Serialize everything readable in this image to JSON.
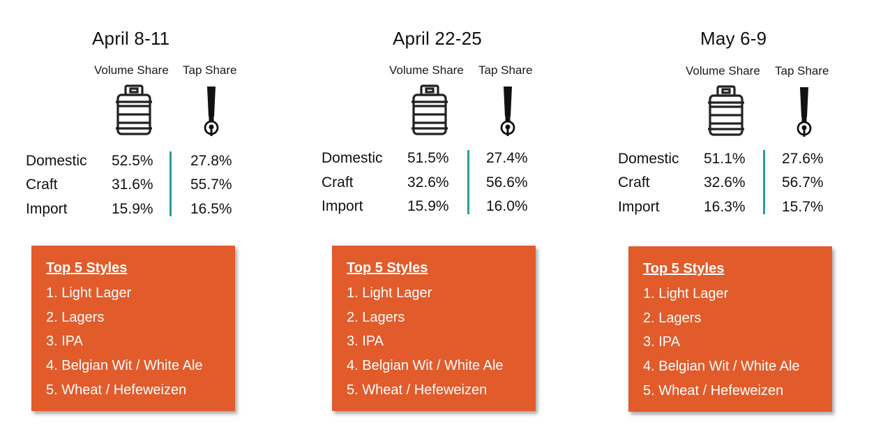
{
  "column_headers": {
    "volume": "Volume Share",
    "tap": "Tap Share"
  },
  "icons": {
    "volume": "keg-icon",
    "tap": "beer-tap-handle-icon"
  },
  "accent_colors": {
    "divider": "#2a9d9b",
    "styles_box": "#e15b2b"
  },
  "panels": [
    {
      "title": "April 8-11",
      "rows": [
        {
          "label": "Domestic",
          "volume": "52.5%",
          "tap": "27.8%"
        },
        {
          "label": "Craft",
          "volume": "31.6%",
          "tap": "55.7%"
        },
        {
          "label": "Import",
          "volume": "15.9%",
          "tap": "16.5%"
        }
      ],
      "styles_title": "Top 5 Styles",
      "styles": [
        "1. Light Lager",
        "2. Lagers",
        "3. IPA",
        "4. Belgian Wit / White Ale",
        "5. Wheat / Hefeweizen"
      ]
    },
    {
      "title": "April 22-25",
      "rows": [
        {
          "label": "Domestic",
          "volume": "51.5%",
          "tap": "27.4%"
        },
        {
          "label": "Craft",
          "volume": "32.6%",
          "tap": "56.6%"
        },
        {
          "label": "Import",
          "volume": "15.9%",
          "tap": "16.0%"
        }
      ],
      "styles_title": "Top 5 Styles",
      "styles": [
        "1. Light Lager",
        "2. Lagers",
        "3. IPA",
        "4. Belgian Wit / White Ale",
        "5. Wheat / Hefeweizen"
      ]
    },
    {
      "title": "May 6-9",
      "rows": [
        {
          "label": "Domestic",
          "volume": "51.1%",
          "tap": "27.6%"
        },
        {
          "label": "Craft",
          "volume": "32.6%",
          "tap": "56.7%"
        },
        {
          "label": "Import",
          "volume": "16.3%",
          "tap": "15.7%"
        }
      ],
      "styles_title": "Top 5 Styles",
      "styles": [
        "1. Light Lager",
        "2. Lagers",
        "3. IPA",
        "4. Belgian Wit / White Ale",
        "5. Wheat / Hefeweizen"
      ]
    }
  ]
}
